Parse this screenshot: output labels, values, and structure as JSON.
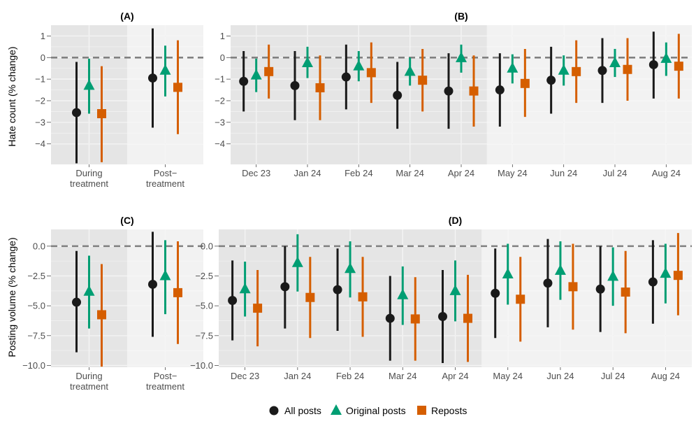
{
  "colors": {
    "all": "#1a1a1a",
    "original": "#009e73",
    "reposts": "#d55e00",
    "shade_dark": "#e5e5e5",
    "shade_light": "#f2f2f2",
    "grid_major": "#d0d0d0",
    "grid_minor": "#e4e4e4",
    "zero_line": "#808080"
  },
  "legend": {
    "all": "All posts",
    "original": "Original posts",
    "reposts": "Reposts"
  },
  "axes": {
    "top_ylabel": "Hate count (% change)",
    "bottom_ylabel": "Posting volume (% change)"
  },
  "chart_data": [
    {
      "id": "A",
      "title": "(A)",
      "type": "scatter",
      "error_bars": true,
      "categories": [
        "During\ntreatment",
        "Post−\ntreatment"
      ],
      "shaded_categories": 1,
      "ylim": [
        -4.95,
        1.5
      ],
      "yticks": [
        1,
        0,
        -1,
        -2,
        -3,
        -4
      ],
      "ytick_labels": [
        "1",
        "0",
        "−1",
        "−2",
        "−3",
        "−4"
      ],
      "series": [
        {
          "name": "All posts",
          "points": [
            {
              "y": -2.55,
              "lo": -4.9,
              "hi": -0.2
            },
            {
              "y": -0.95,
              "lo": -3.25,
              "hi": 1.35
            }
          ]
        },
        {
          "name": "Original posts",
          "points": [
            {
              "y": -1.3,
              "lo": -2.6,
              "hi": -0.05
            },
            {
              "y": -0.6,
              "lo": -1.8,
              "hi": 0.55
            }
          ]
        },
        {
          "name": "Reposts",
          "points": [
            {
              "y": -2.6,
              "lo": -4.85,
              "hi": -0.4
            },
            {
              "y": -1.38,
              "lo": -3.55,
              "hi": 0.8
            }
          ]
        }
      ]
    },
    {
      "id": "B",
      "title": "(B)",
      "type": "scatter",
      "error_bars": true,
      "categories": [
        "Dec 23",
        "Jan 24",
        "Feb 24",
        "Mar 24",
        "Apr 24",
        "May 24",
        "Jun 24",
        "Jul 24",
        "Aug 24"
      ],
      "shaded_categories": 5,
      "ylim": [
        -4.95,
        1.5
      ],
      "yticks": [
        1,
        0,
        -1,
        -2,
        -3,
        -4
      ],
      "ytick_labels": [
        "1",
        "0",
        "−1",
        "−2",
        "−3",
        "−4"
      ],
      "series": [
        {
          "name": "All posts",
          "points": [
            {
              "y": -1.1,
              "lo": -2.5,
              "hi": 0.3
            },
            {
              "y": -1.3,
              "lo": -2.9,
              "hi": 0.3
            },
            {
              "y": -0.9,
              "lo": -2.4,
              "hi": 0.6
            },
            {
              "y": -1.75,
              "lo": -3.3,
              "hi": -0.2
            },
            {
              "y": -1.55,
              "lo": -3.3,
              "hi": 0.2
            },
            {
              "y": -1.5,
              "lo": -3.2,
              "hi": 0.2
            },
            {
              "y": -1.05,
              "lo": -2.6,
              "hi": 0.5
            },
            {
              "y": -0.6,
              "lo": -2.1,
              "hi": 0.9
            },
            {
              "y": -0.33,
              "lo": -1.9,
              "hi": 1.2
            }
          ]
        },
        {
          "name": "Original posts",
          "points": [
            {
              "y": -0.82,
              "lo": -1.6,
              "hi": -0.05
            },
            {
              "y": -0.25,
              "lo": -0.95,
              "hi": 0.5
            },
            {
              "y": -0.4,
              "lo": -1.1,
              "hi": 0.3
            },
            {
              "y": -0.65,
              "lo": -1.3,
              "hi": 0.0
            },
            {
              "y": -0.02,
              "lo": -0.7,
              "hi": 0.6
            },
            {
              "y": -0.5,
              "lo": -1.2,
              "hi": 0.15
            },
            {
              "y": -0.6,
              "lo": -1.3,
              "hi": 0.1
            },
            {
              "y": -0.25,
              "lo": -0.9,
              "hi": 0.4
            },
            {
              "y": -0.05,
              "lo": -0.85,
              "hi": 0.7
            }
          ]
        },
        {
          "name": "Reposts",
          "points": [
            {
              "y": -0.65,
              "lo": -1.9,
              "hi": 0.6
            },
            {
              "y": -1.4,
              "lo": -2.9,
              "hi": 0.1
            },
            {
              "y": -0.7,
              "lo": -2.1,
              "hi": 0.7
            },
            {
              "y": -1.05,
              "lo": -2.5,
              "hi": 0.4
            },
            {
              "y": -1.55,
              "lo": -3.2,
              "hi": 0.1
            },
            {
              "y": -1.2,
              "lo": -2.75,
              "hi": 0.4
            },
            {
              "y": -0.65,
              "lo": -2.1,
              "hi": 0.8
            },
            {
              "y": -0.55,
              "lo": -2.0,
              "hi": 0.9
            },
            {
              "y": -0.4,
              "lo": -1.9,
              "hi": 1.1
            }
          ]
        }
      ]
    },
    {
      "id": "C",
      "title": "(C)",
      "type": "scatter",
      "error_bars": true,
      "categories": [
        "During\ntreatment",
        "Post−\ntreatment"
      ],
      "shaded_categories": 1,
      "ylim": [
        -10.15,
        1.4
      ],
      "yticks": [
        0,
        -2.5,
        -5,
        -7.5,
        -10
      ],
      "ytick_labels": [
        "0.0",
        "−2.5",
        "−5.0",
        "−7.5",
        "−10.0"
      ],
      "series": [
        {
          "name": "All posts",
          "points": [
            {
              "y": -4.7,
              "lo": -8.9,
              "hi": -0.4
            },
            {
              "y": -3.2,
              "lo": -7.6,
              "hi": 1.2
            }
          ]
        },
        {
          "name": "Original posts",
          "points": [
            {
              "y": -3.8,
              "lo": -6.9,
              "hi": -0.8
            },
            {
              "y": -2.5,
              "lo": -5.7,
              "hi": 0.5
            }
          ]
        },
        {
          "name": "Reposts",
          "points": [
            {
              "y": -5.75,
              "lo": -10.1,
              "hi": -1.5
            },
            {
              "y": -3.9,
              "lo": -8.2,
              "hi": 0.4
            }
          ]
        }
      ]
    },
    {
      "id": "D",
      "title": "(D)",
      "type": "scatter",
      "error_bars": true,
      "categories": [
        "Dec 23",
        "Jan 24",
        "Feb 24",
        "Mar 24",
        "Apr 24",
        "May 24",
        "Jun 24",
        "Jul 24",
        "Aug 24"
      ],
      "shaded_categories": 5,
      "ylim": [
        -10.15,
        1.4
      ],
      "yticks": [
        0,
        -2.5,
        -5,
        -7.5,
        -10
      ],
      "ytick_labels": [
        "0.0",
        "−2.5",
        "−5.0",
        "−7.5",
        "−10.0"
      ],
      "series": [
        {
          "name": "All posts",
          "points": [
            {
              "y": -4.55,
              "lo": -7.9,
              "hi": -1.2
            },
            {
              "y": -3.4,
              "lo": -6.9,
              "hi": 0.0
            },
            {
              "y": -3.65,
              "lo": -7.1,
              "hi": -0.2
            },
            {
              "y": -6.05,
              "lo": -9.6,
              "hi": -2.5
            },
            {
              "y": -5.9,
              "lo": -9.8,
              "hi": -2.0
            },
            {
              "y": -3.95,
              "lo": -7.7,
              "hi": -0.2
            },
            {
              "y": -3.1,
              "lo": -6.8,
              "hi": 0.6
            },
            {
              "y": -3.6,
              "lo": -7.2,
              "hi": 0.0
            },
            {
              "y": -3.0,
              "lo": -6.5,
              "hi": 0.5
            }
          ]
        },
        {
          "name": "Original posts",
          "points": [
            {
              "y": -3.6,
              "lo": -5.9,
              "hi": -1.3
            },
            {
              "y": -1.4,
              "lo": -3.8,
              "hi": 1.0
            },
            {
              "y": -1.9,
              "lo": -4.3,
              "hi": 0.4
            },
            {
              "y": -4.1,
              "lo": -6.6,
              "hi": -1.7
            },
            {
              "y": -3.75,
              "lo": -6.3,
              "hi": -1.2
            },
            {
              "y": -2.35,
              "lo": -4.9,
              "hi": 0.2
            },
            {
              "y": -2.05,
              "lo": -4.5,
              "hi": 0.4
            },
            {
              "y": -2.55,
              "lo": -5.0,
              "hi": -0.1
            },
            {
              "y": -2.3,
              "lo": -4.8,
              "hi": 0.2
            }
          ]
        },
        {
          "name": "Reposts",
          "points": [
            {
              "y": -5.2,
              "lo": -8.4,
              "hi": -2.0
            },
            {
              "y": -4.3,
              "lo": -7.7,
              "hi": -0.9
            },
            {
              "y": -4.25,
              "lo": -7.6,
              "hi": -0.9
            },
            {
              "y": -6.1,
              "lo": -9.6,
              "hi": -2.6
            },
            {
              "y": -6.05,
              "lo": -9.7,
              "hi": -2.4
            },
            {
              "y": -4.45,
              "lo": -8.0,
              "hi": -0.9
            },
            {
              "y": -3.4,
              "lo": -7.0,
              "hi": 0.2
            },
            {
              "y": -3.85,
              "lo": -7.3,
              "hi": -0.4
            },
            {
              "y": -2.45,
              "lo": -5.8,
              "hi": 1.1
            }
          ]
        }
      ]
    }
  ]
}
